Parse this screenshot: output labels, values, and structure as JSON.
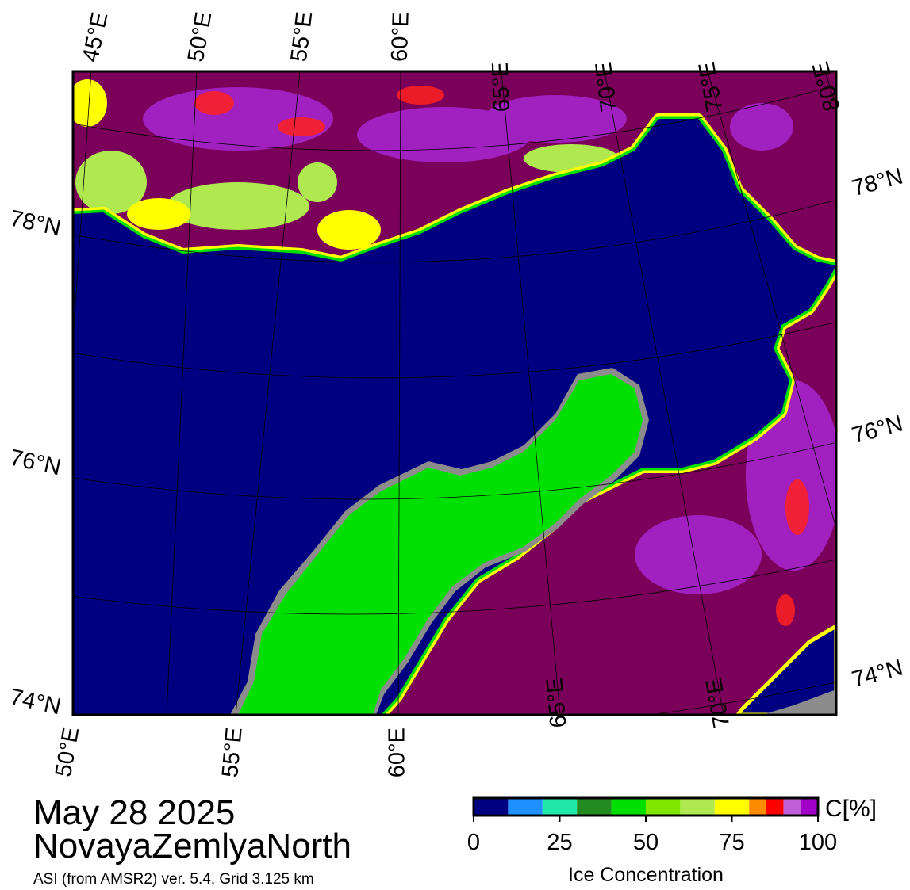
{
  "map": {
    "top_lon_labels": [
      "45°E",
      "50°E",
      "55°E",
      "60°E",
      "65°E",
      "70°E",
      "75°E",
      "80°E"
    ],
    "bottom_lon_labels": [
      "50°E",
      "55°E",
      "60°E",
      "65°E",
      "70°E"
    ],
    "left_lat_labels": [
      "78°N",
      "76°N",
      "74°N"
    ],
    "right_lat_labels": [
      "78°N",
      "76°N",
      "74°N"
    ]
  },
  "caption": {
    "date": "May 28 2025",
    "region": "NovayaZemlyaNorth",
    "source": "ASI (from AMSR2) ver. 5.4,  Grid 3.125 km"
  },
  "colorbar": {
    "unit": "C[%]",
    "label": "Ice Concentration",
    "lim": [
      0,
      100
    ],
    "ticks": [
      0,
      25,
      50,
      75,
      100
    ],
    "bins": [
      0,
      10,
      20,
      30,
      40,
      50,
      60,
      70,
      80,
      85,
      90,
      95,
      100
    ],
    "colors": [
      "#000080",
      "#1e90ff",
      "#20e8a8",
      "#228b22",
      "#00e000",
      "#80e800",
      "#b0e850",
      "#ffff00",
      "#ff8c00",
      "#ff0000",
      "#c060d8",
      "#a000c8"
    ]
  }
}
